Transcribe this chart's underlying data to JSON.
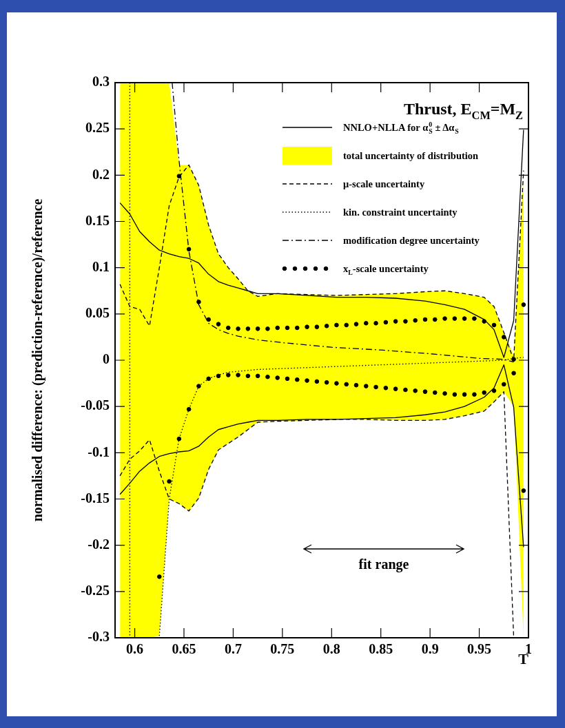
{
  "chart_data": {
    "type": "line",
    "title": "Thrust, E$_{CM}$=M$_{Z}$",
    "xlabel": "T",
    "ylabel": "normalised difference: (prediction-reference)/reference",
    "xlim": [
      0.58,
      1.0
    ],
    "ylim": [
      -0.3,
      0.3
    ],
    "xticks": [
      0.6,
      0.65,
      0.7,
      0.75,
      0.8,
      0.85,
      0.9,
      0.95,
      1
    ],
    "yticks": [
      -0.3,
      -0.25,
      -0.2,
      -0.15,
      -0.1,
      -0.05,
      0,
      0.05,
      0.1,
      0.15,
      0.2,
      0.25,
      0.3
    ],
    "legend": "top right",
    "annotations": [
      "fit range"
    ],
    "series": [
      {
        "name": "NNLO+NLLA for α$^{0}$$_{S}$ ± Δα$_{S}$",
        "line_style": "solid",
        "color": "#000000",
        "x": [
          0.585,
          0.595,
          0.605,
          0.615,
          0.625,
          0.635,
          0.645,
          0.655,
          0.665,
          0.675,
          0.685,
          0.695,
          0.705,
          0.715,
          0.725,
          0.745,
          0.775,
          0.805,
          0.835,
          0.865,
          0.895,
          0.915,
          0.935,
          0.955,
          0.965,
          0.975,
          0.985,
          0.995
        ],
        "values": [
          0.17,
          0.158,
          0.139,
          0.128,
          0.119,
          0.115,
          0.112,
          0.11,
          0.105,
          0.093,
          0.085,
          0.081,
          0.078,
          0.075,
          0.072,
          0.072,
          0.07,
          0.068,
          0.068,
          0.067,
          0.064,
          0.06,
          0.055,
          0.044,
          0.033,
          0.003,
          0.043,
          0.249
        ]
      },
      {
        "name": "total uncertainty of distribution",
        "type": "area",
        "color": "#ffff00",
        "x": [
          0.585,
          0.595,
          0.605,
          0.615,
          0.625,
          0.635,
          0.645,
          0.655,
          0.665,
          0.675,
          0.685,
          0.695,
          0.705,
          0.715,
          0.725,
          0.745,
          0.775,
          0.805,
          0.835,
          0.865,
          0.895,
          0.915,
          0.935,
          0.955,
          0.965,
          0.975,
          0.985,
          0.995
        ],
        "values": [
          null,
          null,
          null,
          null,
          null,
          null,
          null,
          null,
          null,
          null,
          null,
          null,
          null,
          null,
          null,
          null,
          null,
          null,
          null,
          null,
          null,
          null,
          null,
          null,
          null,
          null,
          null,
          null
        ],
        "upper": [
          0.3,
          0.3,
          0.3,
          0.3,
          0.3,
          0.3,
          0.211,
          0.211,
          0.189,
          0.146,
          0.115,
          0.1,
          0.088,
          0.075,
          0.069,
          0.072,
          0.071,
          0.07,
          0.071,
          0.072,
          0.074,
          0.075,
          0.072,
          0.068,
          0.058,
          0.03,
          0.005,
          0.205
        ],
        "lower": [
          -0.3,
          -0.3,
          -0.3,
          -0.3,
          -0.298,
          -0.15,
          -0.155,
          -0.163,
          -0.149,
          -0.118,
          -0.097,
          -0.09,
          -0.083,
          -0.075,
          -0.067,
          -0.066,
          -0.065,
          -0.064,
          -0.064,
          -0.065,
          -0.065,
          -0.064,
          -0.06,
          -0.055,
          -0.045,
          -0.034,
          -0.05,
          -0.3
        ]
      },
      {
        "name": "μ-scale uncertainty",
        "line_style": "dashed",
        "color": "#000000",
        "x": [
          0.585,
          0.595,
          0.605,
          0.615,
          0.625,
          0.635,
          0.645,
          0.655,
          0.665,
          0.675,
          0.685,
          0.695,
          0.705,
          0.715,
          0.725,
          0.745,
          0.775,
          0.805,
          0.835,
          0.865,
          0.895,
          0.915,
          0.935,
          0.955,
          0.965,
          0.975,
          0.985,
          0.995
        ],
        "values": [
          0.082,
          0.058,
          0.055,
          0.037,
          0.1,
          0.167,
          0.198,
          0.211,
          0.189,
          0.146,
          0.115,
          0.1,
          0.088,
          0.075,
          0.069,
          0.072,
          0.071,
          0.07,
          0.071,
          0.072,
          0.074,
          0.075,
          0.072,
          0.068,
          0.058,
          0.03,
          0.0,
          0.205
        ]
      },
      {
        "name": "kin. constraint uncertainty",
        "line_style": "dotted",
        "color": "#000000",
        "x": [
          0.625,
          0.635,
          0.645,
          0.655,
          0.665,
          0.675,
          0.685,
          0.695,
          0.705,
          0.725,
          0.75,
          0.8,
          0.85,
          0.9,
          0.95,
          0.975,
          0.985,
          0.995
        ],
        "values": [
          -0.298,
          -0.15,
          -0.085,
          -0.053,
          -0.028,
          -0.02,
          -0.016,
          -0.013,
          -0.012,
          -0.01,
          -0.009,
          -0.007,
          -0.005,
          -0.003,
          -0.001,
          0.0,
          0.002,
          0.003
        ]
      },
      {
        "name": "modification degree uncertainty",
        "line_style": "dashdot",
        "color": "#000000",
        "x": [
          0.638,
          0.645,
          0.655,
          0.665,
          0.675,
          0.685,
          0.695,
          0.705,
          0.725,
          0.75,
          0.8,
          0.85,
          0.9,
          0.95,
          0.975,
          0.985
        ],
        "values": [
          0.3,
          0.216,
          0.118,
          0.06,
          0.04,
          0.033,
          0.029,
          0.026,
          0.022,
          0.019,
          0.014,
          0.011,
          0.007,
          0.002,
          0.001,
          -0.002
        ]
      },
      {
        "name": "x$_{L}$-scale uncertainty",
        "type": "scatter",
        "marker": "circle",
        "color": "#000000",
        "x": [
          0.645,
          0.655,
          0.665,
          0.675,
          0.685,
          0.695,
          0.705,
          0.715,
          0.725,
          0.735,
          0.745,
          0.755,
          0.765,
          0.775,
          0.785,
          0.795,
          0.805,
          0.815,
          0.825,
          0.835,
          0.845,
          0.855,
          0.865,
          0.875,
          0.885,
          0.895,
          0.905,
          0.915,
          0.925,
          0.935,
          0.945,
          0.955,
          0.965,
          0.975,
          0.985,
          0.995
        ],
        "values": [
          0.199,
          0.12,
          0.063,
          0.044,
          0.039,
          0.035,
          0.034,
          0.034,
          0.034,
          0.034,
          0.035,
          0.035,
          0.035,
          0.036,
          0.036,
          0.037,
          0.038,
          0.038,
          0.039,
          0.04,
          0.04,
          0.041,
          0.042,
          0.042,
          0.043,
          0.044,
          0.044,
          0.045,
          0.045,
          0.045,
          0.045,
          0.042,
          0.038,
          0.025,
          0.001,
          0.06
        ]
      },
      {
        "line_style": "solid",
        "color": "#000000",
        "x": [
          0.585,
          0.595,
          0.605,
          0.615,
          0.625,
          0.635,
          0.645,
          0.655,
          0.665,
          0.675,
          0.685,
          0.695,
          0.705,
          0.715,
          0.725,
          0.745,
          0.775,
          0.805,
          0.835,
          0.865,
          0.895,
          0.915,
          0.935,
          0.955,
          0.965,
          0.975,
          0.985,
          0.995
        ],
        "values": [
          -0.145,
          -0.133,
          -0.12,
          -0.111,
          -0.104,
          -0.101,
          -0.099,
          -0.098,
          -0.093,
          -0.083,
          -0.075,
          -0.072,
          -0.069,
          -0.067,
          -0.065,
          -0.065,
          -0.064,
          -0.064,
          -0.063,
          -0.062,
          -0.059,
          -0.056,
          -0.05,
          -0.04,
          -0.03,
          -0.005,
          -0.051,
          -0.202
        ]
      },
      {
        "line_style": "dashed",
        "color": "#000000",
        "x": [
          0.585,
          0.595,
          0.605,
          0.615,
          0.625,
          0.635,
          0.645,
          0.655,
          0.665,
          0.675,
          0.685,
          0.695,
          0.705,
          0.715,
          0.725,
          0.745,
          0.775,
          0.805,
          0.835,
          0.865,
          0.895,
          0.915,
          0.935,
          0.955,
          0.965,
          0.975,
          0.985
        ],
        "values": [
          -0.125,
          -0.107,
          -0.098,
          -0.086,
          -0.12,
          -0.15,
          -0.155,
          -0.163,
          -0.149,
          -0.118,
          -0.097,
          -0.09,
          -0.083,
          -0.075,
          -0.067,
          -0.066,
          -0.065,
          -0.064,
          -0.064,
          -0.065,
          -0.065,
          -0.064,
          -0.06,
          -0.055,
          -0.045,
          -0.034,
          -0.3
        ]
      },
      {
        "line_style": "dotted",
        "color": "#000000",
        "x": [
          0.595,
          0.595
        ],
        "values": [
          0.3,
          -0.3
        ]
      },
      {
        "type": "scatter",
        "marker": "circle",
        "color": "#000000",
        "x": [
          0.625,
          0.635,
          0.645,
          0.655,
          0.665,
          0.675,
          0.685,
          0.695,
          0.705,
          0.715,
          0.725,
          0.735,
          0.745,
          0.755,
          0.765,
          0.775,
          0.785,
          0.795,
          0.805,
          0.815,
          0.825,
          0.835,
          0.845,
          0.855,
          0.865,
          0.875,
          0.885,
          0.895,
          0.905,
          0.915,
          0.925,
          0.935,
          0.945,
          0.955,
          0.965,
          0.975,
          0.985,
          0.995
        ],
        "values": [
          -0.234,
          -0.131,
          -0.085,
          -0.053,
          -0.028,
          -0.02,
          -0.017,
          -0.016,
          -0.016,
          -0.017,
          -0.017,
          -0.018,
          -0.019,
          -0.02,
          -0.021,
          -0.022,
          -0.023,
          -0.024,
          -0.025,
          -0.026,
          -0.027,
          -0.028,
          -0.029,
          -0.03,
          -0.031,
          -0.032,
          -0.033,
          -0.034,
          -0.035,
          -0.036,
          -0.037,
          -0.037,
          -0.037,
          -0.035,
          -0.033,
          -0.026,
          -0.014,
          -0.141
        ]
      }
    ]
  }
}
